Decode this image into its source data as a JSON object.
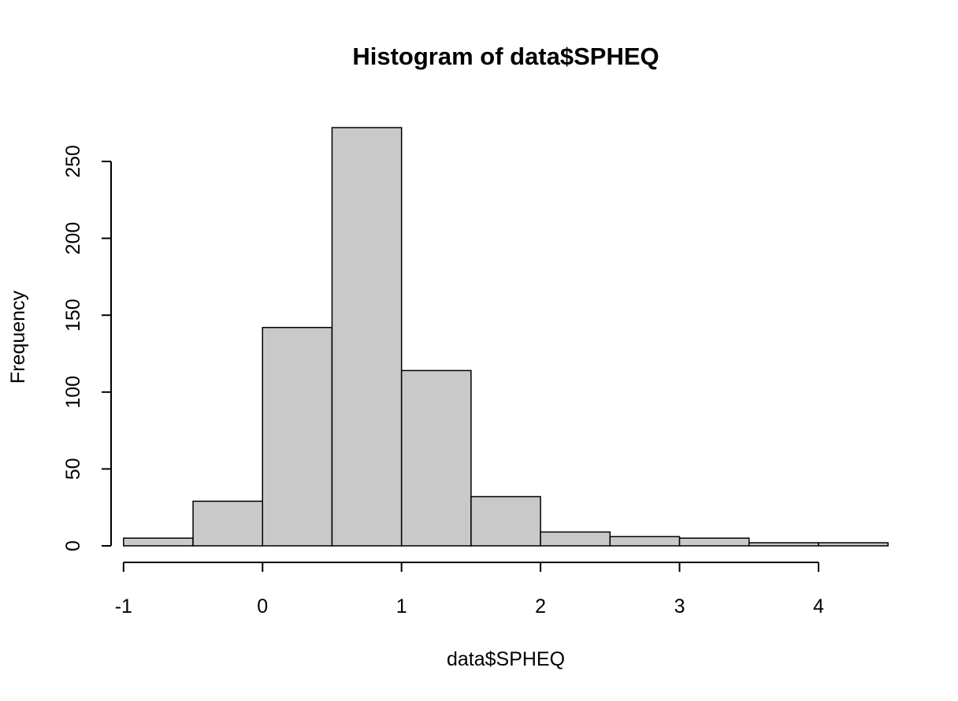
{
  "chart_data": {
    "type": "bar",
    "title": "Histogram of data$SPHEQ",
    "xlabel": "data$SPHEQ",
    "ylabel": "Frequency",
    "bin_edges": [
      -1,
      -0.5,
      0,
      0.5,
      1,
      1.5,
      2,
      2.5,
      3,
      3.5,
      4,
      4.5
    ],
    "values": [
      5,
      29,
      142,
      272,
      114,
      32,
      9,
      6,
      5,
      2,
      2
    ],
    "xticks": [
      -1,
      0,
      1,
      2,
      3,
      4
    ],
    "xtick_labels": [
      "-1",
      "0",
      "1",
      "2",
      "3",
      "4"
    ],
    "yticks": [
      0,
      50,
      100,
      150,
      200,
      250
    ],
    "ytick_labels": [
      "0",
      "50",
      "100",
      "150",
      "200",
      "250"
    ],
    "xlim": [
      -1.05,
      4.55
    ],
    "ylim": [
      0,
      272
    ],
    "grid": false,
    "colors": {
      "bar_fill": "#c9c9c9",
      "bar_stroke": "#000000",
      "background": "#ffffff"
    }
  }
}
